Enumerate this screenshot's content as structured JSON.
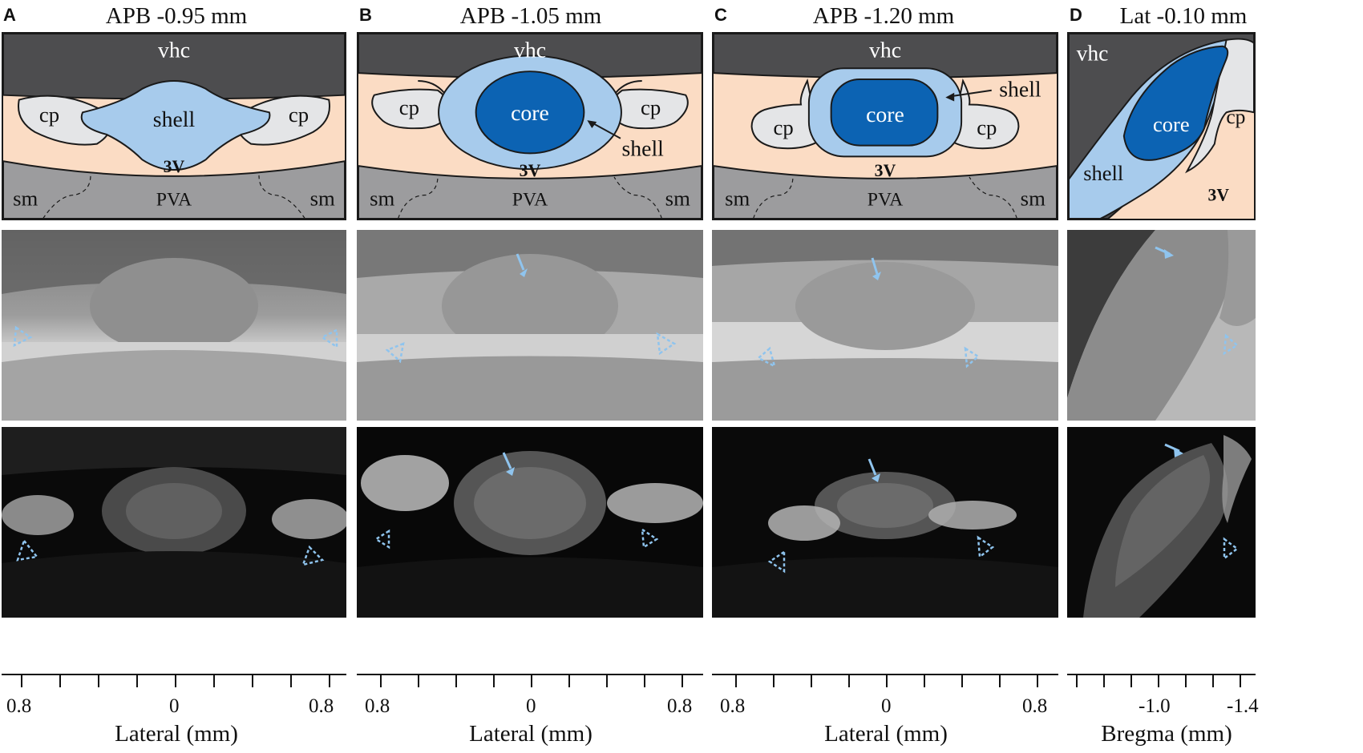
{
  "panels": [
    {
      "letter": "A",
      "title": "APB -0.95 mm",
      "labels": {
        "vhc": "vhc",
        "cp_left": "cp",
        "cp_right": "cp",
        "shell": "shell",
        "v3": "3V",
        "sm_left": "sm",
        "pva": "PVA",
        "sm_right": "sm"
      },
      "axis": {
        "ticks": [
          "0.8",
          "0",
          "0.8"
        ],
        "title": "Lateral (mm)"
      }
    },
    {
      "letter": "B",
      "title": "APB -1.05 mm",
      "labels": {
        "vhc": "vhc",
        "cp_left": "cp",
        "cp_right": "cp",
        "core": "core",
        "shell": "shell",
        "v3": "3V",
        "sm_left": "sm",
        "pva": "PVA",
        "sm_right": "sm"
      },
      "axis": {
        "ticks": [
          "0.8",
          "0",
          "0.8"
        ],
        "title": "Lateral (mm)"
      }
    },
    {
      "letter": "C",
      "title": "APB -1.20 mm",
      "labels": {
        "vhc": "vhc",
        "cp_left": "cp",
        "cp_right": "cp",
        "core": "core",
        "shell": "shell",
        "v3": "3V",
        "sm_left": "sm",
        "pva": "PVA",
        "sm_right": "sm"
      },
      "axis": {
        "ticks": [
          "0.8",
          "0",
          "0.8"
        ],
        "title": "Lateral (mm)"
      }
    },
    {
      "letter": "D",
      "title": "Lat -0.10 mm",
      "labels": {
        "vhc": "vhc",
        "core": "core",
        "cp": "cp",
        "shell": "shell",
        "v3": "3V"
      },
      "axis": {
        "ticks": [
          "-1.0",
          "-1.4"
        ],
        "title": "Bregma (mm)"
      }
    }
  ],
  "colors": {
    "vhc": "#4d4d4f",
    "background_tissue": "#fbdcc4",
    "choroid_plexus": "#e4e5e7",
    "shell": "#a7cbec",
    "core": "#0c63b3",
    "ventral_region": "#9c9c9e",
    "arrow_marker": "#8fc4ee"
  }
}
